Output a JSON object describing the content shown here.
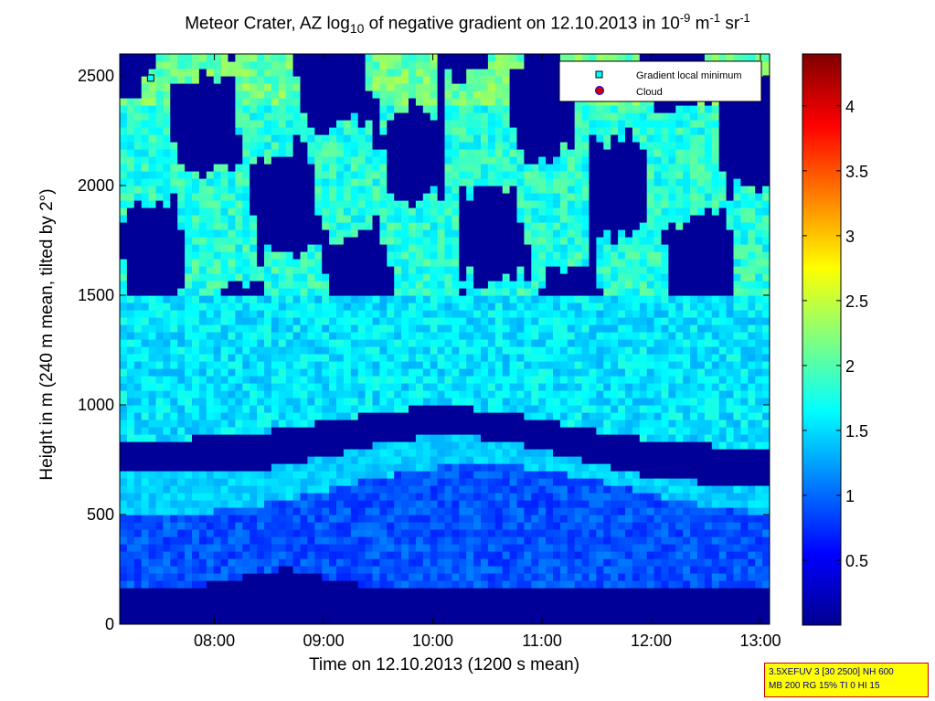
{
  "title": {
    "prefix": "Meteor Crater, AZ log",
    "sub": "10",
    "middle": " of negative gradient on 12.10.2013 in 10",
    "exp1": "-9",
    "unit1": " m",
    "exp2": "-1",
    "unit2": " sr",
    "exp3": "-1"
  },
  "chart_data": {
    "type": "heatmap",
    "xlabel": "Time on 12.10.2013 (1200 s mean)",
    "ylabel": "Height in m (240 m mean, tilted by 2°)",
    "xlim": [
      "07:08",
      "13:05"
    ],
    "ylim": [
      0,
      2600
    ],
    "x_ticks": [
      "08:00",
      "09:00",
      "10:00",
      "11:00",
      "12:00",
      "13:00"
    ],
    "y_ticks": [
      0,
      500,
      1000,
      1500,
      2000,
      2500
    ],
    "colorbar": {
      "ticks": [
        "0.5",
        "1",
        "1.5",
        "2",
        "2.5",
        "3",
        "3.5",
        "4"
      ],
      "range": [
        0,
        4.4
      ],
      "colormap": "jet"
    },
    "legend": {
      "placement": "top-right",
      "entries": [
        {
          "label": "Gradient local minimum",
          "marker": "square",
          "color": "#00ffff"
        },
        {
          "label": "Cloud",
          "marker": "circle",
          "color": "#cc0000"
        }
      ]
    },
    "markers": [
      {
        "series": "Gradient local minimum",
        "time": "07:25",
        "height": 2490
      }
    ],
    "layers": [
      {
        "height_range": [
          0,
          180
        ],
        "value": 0.05,
        "description_key": "surface"
      },
      {
        "height_range": [
          180,
          600
        ],
        "value": 0.9
      },
      {
        "height_range": [
          600,
          900
        ],
        "value": 1.5
      },
      {
        "height_range": [
          780,
          950
        ],
        "value": 0.05
      },
      {
        "height_range": [
          950,
          1500
        ],
        "value": 1.5
      },
      {
        "height_range": [
          1500,
          2600
        ],
        "value": 1.2
      }
    ]
  },
  "info_box": {
    "line1": "3.5XEFUV 3 [30 2500] NH 600",
    "line2": "MB 200 RG 15% TI 0 HI 15"
  },
  "colors": {
    "cmap_low": "#00008f",
    "cmap_high": "#800000",
    "info_bg": "#ffff00",
    "info_text": "#00008b"
  }
}
